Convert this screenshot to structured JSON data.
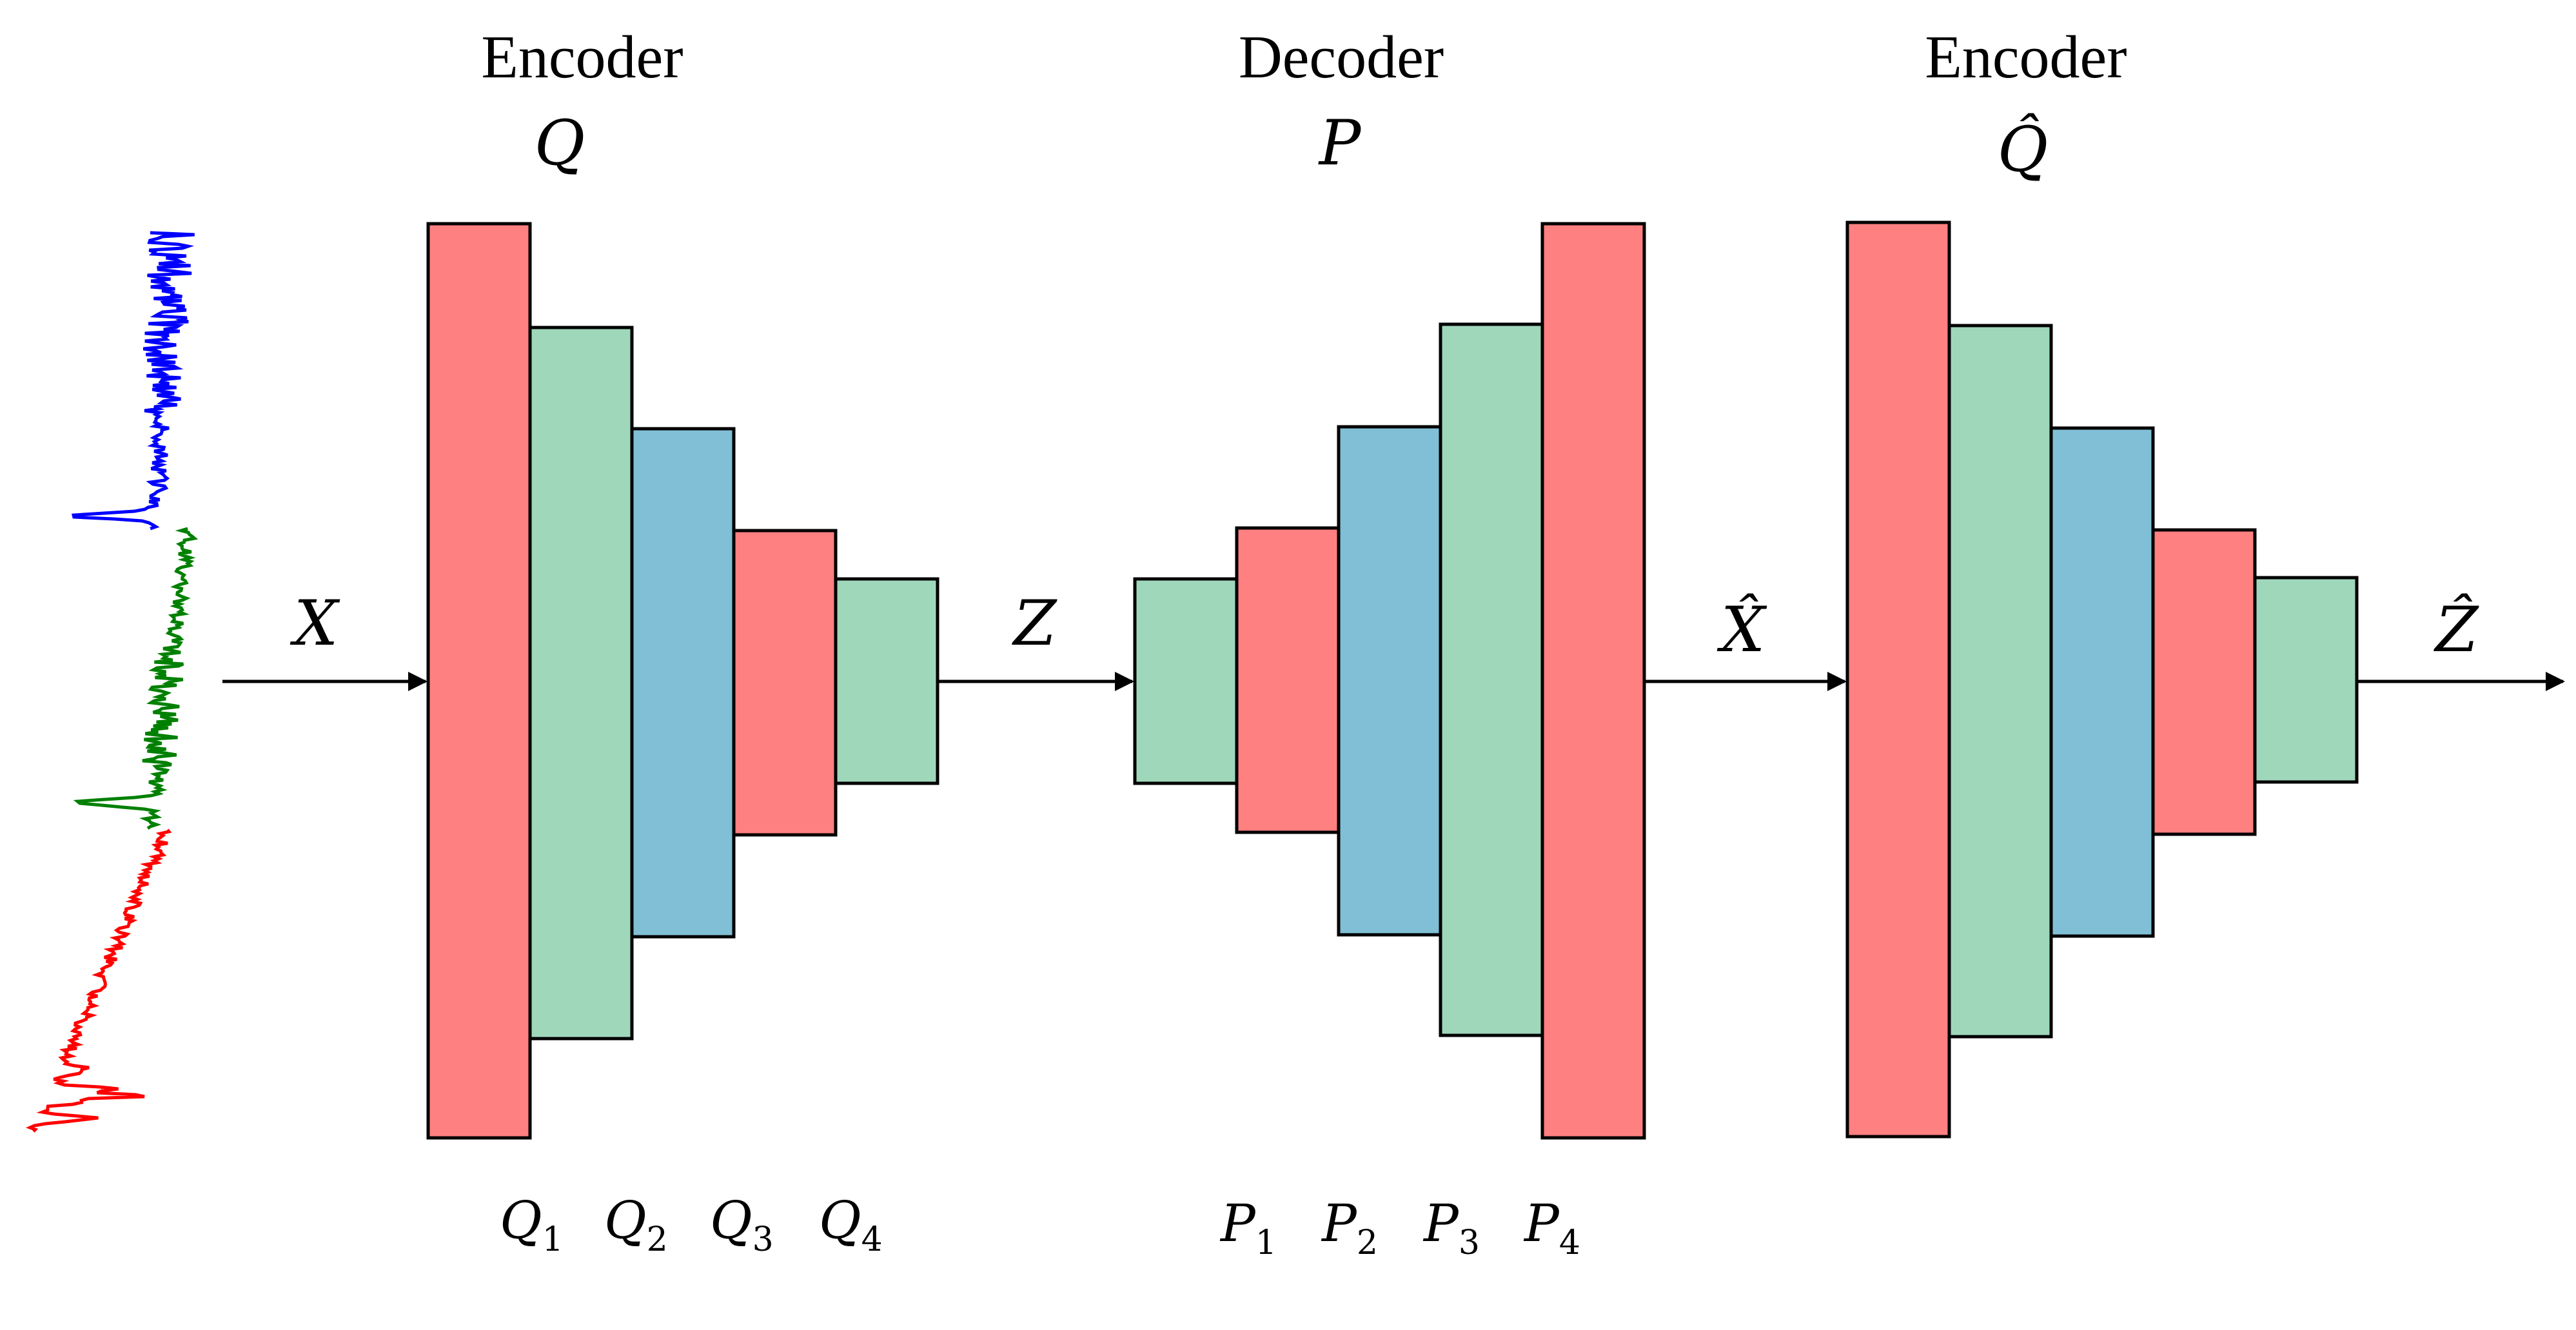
{
  "colors": {
    "red": "#ff8080",
    "green": "#9fd7bb",
    "blue": "#80bfd6",
    "signal_blue": "#0000ff",
    "signal_green": "#008000",
    "signal_red": "#ff0000"
  },
  "encoder1": {
    "title": "Encoder",
    "symbol": "Q",
    "layer_labels": [
      {
        "base": "Q",
        "sub": "1"
      },
      {
        "base": "Q",
        "sub": "2"
      },
      {
        "base": "Q",
        "sub": "3"
      },
      {
        "base": "Q",
        "sub": "4"
      }
    ]
  },
  "decoder": {
    "title": "Decoder",
    "symbol": "P",
    "layer_labels": [
      {
        "base": "P",
        "sub": "1"
      },
      {
        "base": "P",
        "sub": "2"
      },
      {
        "base": "P",
        "sub": "3"
      },
      {
        "base": "P",
        "sub": "4"
      }
    ]
  },
  "encoder2": {
    "title": "Encoder",
    "symbol": "Q̂"
  },
  "flow_labels": {
    "input": "X",
    "latent": "Z",
    "reconstruction": "X̂",
    "latent_reconstruction": "Ẑ"
  },
  "input_signal": {
    "channels": [
      "blue",
      "green",
      "red"
    ]
  }
}
